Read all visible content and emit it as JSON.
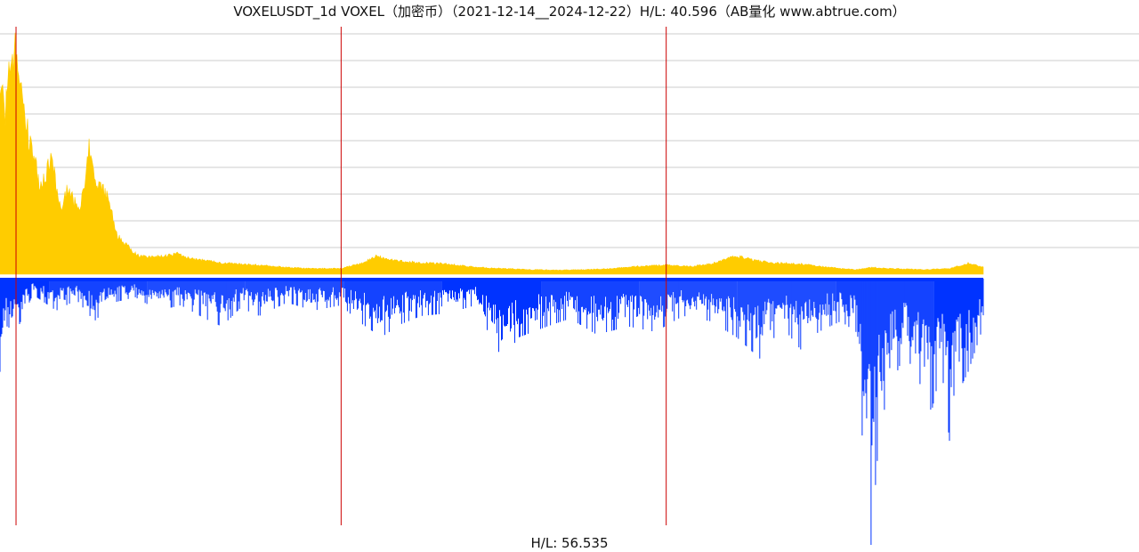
{
  "chart_data": {
    "type": "area",
    "title": "VOXELUSDT_1d VOXEL（加密币）（2021-12-14__2024-12-22）H/L: 40.596（AB量化  www.abtrue.com）",
    "bottom_label": "H/L: 56.535",
    "x_range": [
      "2021-12-14",
      "2024-12-22"
    ],
    "grid": true,
    "colors": {
      "upper": "#ffcc00",
      "lower": "#0033ff",
      "separators": "#cc0000",
      "grid": "#cccccc"
    },
    "upper_high_low_ratio": 40.596,
    "lower_high_low_ratio": 56.535,
    "year_separators": [
      "2022-01-01",
      "2023-01-01",
      "2024-01-01"
    ],
    "upper_envelope": [
      [
        "2021-12-14",
        0.88
      ],
      [
        "2021-12-20",
        0.72
      ],
      [
        "2021-12-26",
        0.95
      ],
      [
        "2022-01-01",
        1.0
      ],
      [
        "2022-01-08",
        0.8
      ],
      [
        "2022-01-15",
        0.6
      ],
      [
        "2022-01-22",
        0.5
      ],
      [
        "2022-01-28",
        0.4
      ],
      [
        "2022-02-04",
        0.45
      ],
      [
        "2022-02-10",
        0.51
      ],
      [
        "2022-02-16",
        0.36
      ],
      [
        "2022-02-22",
        0.28
      ],
      [
        "2022-02-28",
        0.4
      ],
      [
        "2022-03-06",
        0.32
      ],
      [
        "2022-03-12",
        0.3
      ],
      [
        "2022-03-18",
        0.36
      ],
      [
        "2022-03-24",
        0.55
      ],
      [
        "2022-03-30",
        0.42
      ],
      [
        "2022-04-05",
        0.38
      ],
      [
        "2022-04-11",
        0.36
      ],
      [
        "2022-04-17",
        0.3
      ],
      [
        "2022-04-23",
        0.18
      ],
      [
        "2022-04-29",
        0.15
      ],
      [
        "2022-05-06",
        0.13
      ],
      [
        "2022-05-12",
        0.1
      ],
      [
        "2022-05-20",
        0.08
      ],
      [
        "2022-06-01",
        0.075
      ],
      [
        "2022-06-15",
        0.08
      ],
      [
        "2022-07-01",
        0.09
      ],
      [
        "2022-07-15",
        0.07
      ],
      [
        "2022-08-01",
        0.06
      ],
      [
        "2022-08-20",
        0.05
      ],
      [
        "2022-09-10",
        0.045
      ],
      [
        "2022-10-01",
        0.04
      ],
      [
        "2022-11-01",
        0.03
      ],
      [
        "2022-12-01",
        0.025
      ],
      [
        "2023-01-01",
        0.025
      ],
      [
        "2023-01-25",
        0.05
      ],
      [
        "2023-02-10",
        0.08
      ],
      [
        "2023-03-01",
        0.06
      ],
      [
        "2023-04-01",
        0.05
      ],
      [
        "2023-05-01",
        0.045
      ],
      [
        "2023-06-01",
        0.03
      ],
      [
        "2023-07-01",
        0.025
      ],
      [
        "2023-08-01",
        0.02
      ],
      [
        "2023-09-01",
        0.018
      ],
      [
        "2023-10-01",
        0.02
      ],
      [
        "2023-11-01",
        0.025
      ],
      [
        "2023-12-01",
        0.035
      ],
      [
        "2024-01-01",
        0.04
      ],
      [
        "2024-02-01",
        0.035
      ],
      [
        "2024-02-25",
        0.05
      ],
      [
        "2024-03-20",
        0.08
      ],
      [
        "2024-04-10",
        0.06
      ],
      [
        "2024-05-01",
        0.05
      ],
      [
        "2024-06-01",
        0.045
      ],
      [
        "2024-07-01",
        0.03
      ],
      [
        "2024-08-01",
        0.02
      ],
      [
        "2024-08-20",
        0.03
      ],
      [
        "2024-09-10",
        0.025
      ],
      [
        "2024-10-15",
        0.02
      ],
      [
        "2024-11-15",
        0.025
      ],
      [
        "2024-12-05",
        0.05
      ],
      [
        "2024-12-22",
        0.03
      ]
    ],
    "lower_envelope": [
      [
        "2021-12-14",
        0.35
      ],
      [
        "2021-12-22",
        0.18
      ],
      [
        "2022-01-01",
        0.2
      ],
      [
        "2022-01-20",
        0.06
      ],
      [
        "2022-02-15",
        0.12
      ],
      [
        "2022-03-10",
        0.08
      ],
      [
        "2022-03-30",
        0.16
      ],
      [
        "2022-04-20",
        0.09
      ],
      [
        "2022-05-15",
        0.07
      ],
      [
        "2022-06-10",
        0.12
      ],
      [
        "2022-07-05",
        0.1
      ],
      [
        "2022-08-01",
        0.15
      ],
      [
        "2022-08-20",
        0.18
      ],
      [
        "2022-09-10",
        0.11
      ],
      [
        "2022-10-01",
        0.14
      ],
      [
        "2022-11-01",
        0.09
      ],
      [
        "2022-12-01",
        0.12
      ],
      [
        "2023-01-01",
        0.1
      ],
      [
        "2023-01-20",
        0.16
      ],
      [
        "2023-02-15",
        0.22
      ],
      [
        "2023-03-10",
        0.17
      ],
      [
        "2023-04-01",
        0.14
      ],
      [
        "2023-05-01",
        0.13
      ],
      [
        "2023-06-01",
        0.1
      ],
      [
        "2023-06-15",
        0.2
      ],
      [
        "2023-07-01",
        0.3
      ],
      [
        "2023-07-20",
        0.22
      ],
      [
        "2023-08-20",
        0.18
      ],
      [
        "2023-09-15",
        0.15
      ],
      [
        "2023-10-15",
        0.21
      ],
      [
        "2023-11-20",
        0.18
      ],
      [
        "2023-12-20",
        0.2
      ],
      [
        "2024-01-20",
        0.14
      ],
      [
        "2024-02-20",
        0.16
      ],
      [
        "2024-03-20",
        0.22
      ],
      [
        "2024-04-15",
        0.3
      ],
      [
        "2024-05-10",
        0.18
      ],
      [
        "2024-06-01",
        0.27
      ],
      [
        "2024-06-20",
        0.2
      ],
      [
        "2024-07-15",
        0.16
      ],
      [
        "2024-08-01",
        0.2
      ],
      [
        "2024-08-10",
        0.7
      ],
      [
        "2024-08-18",
        1.0
      ],
      [
        "2024-08-28",
        0.55
      ],
      [
        "2024-09-10",
        0.4
      ],
      [
        "2024-09-25",
        0.28
      ],
      [
        "2024-10-10",
        0.38
      ],
      [
        "2024-10-25",
        0.5
      ],
      [
        "2024-11-05",
        0.33
      ],
      [
        "2024-11-15",
        0.64
      ],
      [
        "2024-11-25",
        0.42
      ],
      [
        "2024-12-05",
        0.35
      ],
      [
        "2024-12-12",
        0.28
      ],
      [
        "2024-12-22",
        0.18
      ]
    ]
  }
}
